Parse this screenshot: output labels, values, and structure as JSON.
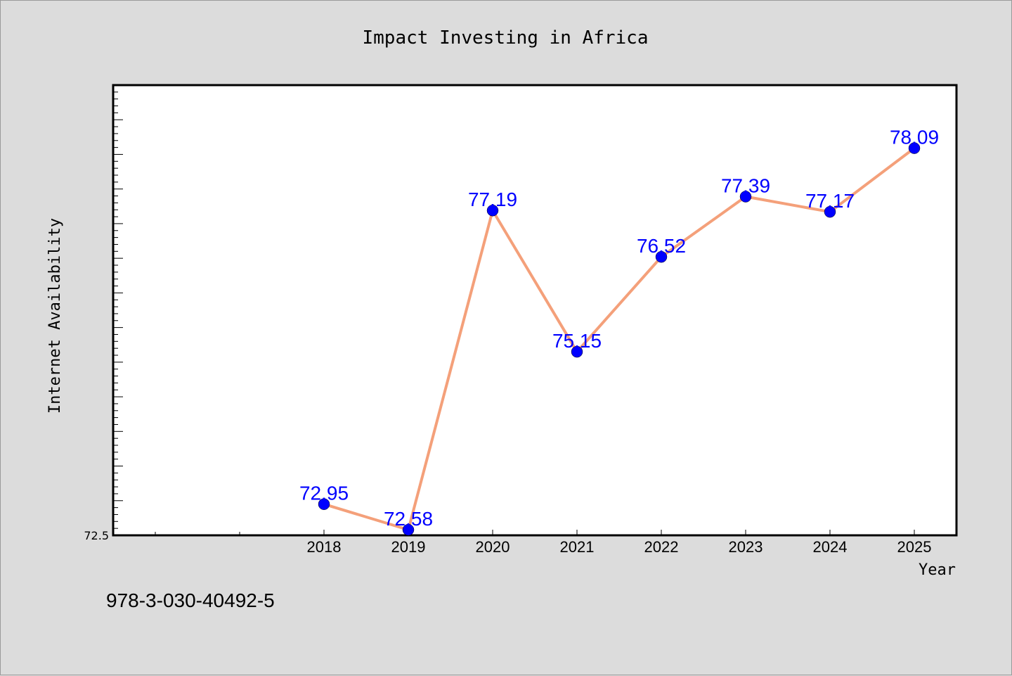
{
  "chart_data": {
    "type": "line",
    "title": "Impact Investing in Africa",
    "xlabel": "Year",
    "ylabel": "Internet Availability",
    "x": [
      "2018",
      "2019",
      "2020",
      "2021",
      "2022",
      "2023",
      "2024",
      "2025"
    ],
    "y": [
      72.95,
      72.58,
      77.19,
      75.15,
      76.52,
      77.39,
      77.17,
      78.09
    ],
    "data_labels": [
      "72.95",
      "72.58",
      "77.19",
      "75.15",
      "76.52",
      "77.39",
      "77.17",
      "78.09"
    ],
    "y_tick_labels": [
      "72.5"
    ],
    "ylim": [
      72.5,
      79.0
    ],
    "x_minor_ticks_before": 2,
    "line_color": "#f4a07a",
    "marker_color": "#0000ff",
    "label_color": "#0000ff",
    "plot_background": "#ffffff",
    "page_background": "#dcdcdc",
    "grid": false,
    "legend": "none"
  },
  "footer": {
    "isbn": "978-3-030-40492-5"
  }
}
